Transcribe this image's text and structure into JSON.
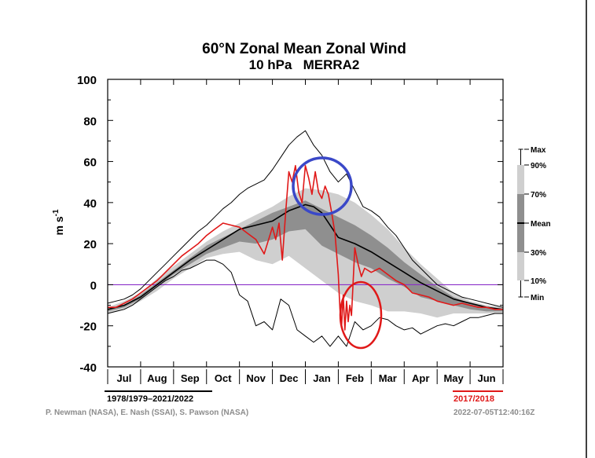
{
  "chart_data": {
    "type": "line",
    "title": "60°N Zonal Mean Zonal Wind",
    "subtitle": "10 hPa   MERRA2",
    "ylabel": "m s-1",
    "ylim": [
      -40,
      100
    ],
    "yticks": [
      -40,
      -20,
      0,
      20,
      40,
      60,
      80,
      100
    ],
    "months": [
      "Jul",
      "Aug",
      "Sep",
      "Oct",
      "Nov",
      "Dec",
      "Jan",
      "Feb",
      "Mar",
      "Apr",
      "May",
      "Jun"
    ],
    "xlim": [
      0,
      12
    ],
    "zero_line_color": "#8b2fc9",
    "climatology_label": "1978/1979–2021/2022",
    "year_label": "2017/2018",
    "credit": "P. Newman (NASA), E. Nash (SSAI), S. Pawson (NASA)",
    "timestamp": "2022-07-05T12:40:16Z",
    "legend": {
      "placement": "right",
      "entries": [
        "Max",
        "90%",
        "70%",
        "Mean",
        "30%",
        "10%",
        "Min"
      ]
    },
    "colors": {
      "band_10_90": "#cfcfcf",
      "band_30_70": "#8f8f8f",
      "mean": "#000000",
      "extremes": "#000000",
      "year": "#e01818",
      "highlight_circle_blue": "#3a48c8",
      "highlight_circle_red": "#e01818"
    },
    "series": [
      {
        "name": "Max",
        "x": [
          0,
          0.25,
          0.5,
          0.75,
          1,
          1.25,
          1.5,
          1.75,
          2,
          2.25,
          2.5,
          2.75,
          3,
          3.25,
          3.5,
          3.75,
          4,
          4.25,
          4.5,
          4.75,
          5,
          5.25,
          5.5,
          5.75,
          6,
          6.25,
          6.5,
          6.75,
          7,
          7.25,
          7.5,
          7.75,
          8,
          8.25,
          8.5,
          8.75,
          9,
          9.25,
          9.5,
          9.75,
          10,
          10.25,
          10.5,
          10.75,
          11,
          11.25,
          11.5,
          11.75,
          12
        ],
        "values": [
          -9,
          -8,
          -7,
          -5,
          -2,
          2,
          6,
          10,
          14,
          18,
          22,
          26,
          29,
          33,
          37,
          40,
          44,
          47,
          49,
          51,
          56,
          62,
          68,
          72,
          75,
          68,
          63,
          55,
          50,
          54,
          46,
          38,
          36,
          33,
          28,
          24,
          18,
          12,
          8,
          4,
          0,
          -2,
          -4,
          -6,
          -7,
          -8,
          -9,
          -10,
          -11
        ]
      },
      {
        "name": "90%",
        "x": [
          0,
          0.5,
          1,
          1.5,
          2,
          2.5,
          3,
          3.5,
          4,
          4.5,
          5,
          5.5,
          6,
          6.5,
          7,
          7.5,
          8,
          8.5,
          9,
          9.5,
          10,
          10.5,
          11,
          11.5,
          12
        ],
        "values": [
          -11,
          -8,
          -4,
          3,
          9,
          15,
          21,
          26,
          30,
          34,
          38,
          43,
          47,
          46,
          44,
          40,
          34,
          27,
          18,
          10,
          3,
          -4,
          -8,
          -10,
          -11
        ]
      },
      {
        "name": "70%",
        "x": [
          0,
          0.5,
          1,
          1.5,
          2,
          2.5,
          3,
          3.5,
          4,
          4.5,
          5,
          5.5,
          6,
          6.5,
          7,
          7.5,
          8,
          8.5,
          9,
          9.5,
          10,
          10.5,
          11,
          11.5,
          12
        ],
        "values": [
          -12,
          -10,
          -5,
          1,
          7,
          13,
          19,
          23,
          27,
          31,
          35,
          38,
          41,
          37,
          33,
          29,
          24,
          18,
          11,
          5,
          -1,
          -6,
          -9,
          -11,
          -12
        ]
      },
      {
        "name": "Mean",
        "x": [
          0,
          0.5,
          1,
          1.5,
          2,
          2.5,
          3,
          3.5,
          4,
          4.5,
          5,
          5.5,
          6,
          6.25,
          6.5,
          6.75,
          7,
          7.5,
          8,
          8.5,
          9,
          9.5,
          10,
          10.5,
          11,
          11.5,
          12
        ],
        "values": [
          -12,
          -10,
          -6,
          0,
          6,
          12,
          17,
          22,
          27,
          29,
          31,
          36,
          39,
          38,
          35,
          29,
          23,
          20,
          16,
          11,
          6,
          1,
          -3,
          -7,
          -9,
          -11,
          -12
        ]
      },
      {
        "name": "30%",
        "x": [
          0,
          0.5,
          1,
          1.5,
          2,
          2.5,
          3,
          3.5,
          4,
          4.5,
          5,
          5.5,
          6,
          6.5,
          7,
          7.5,
          8,
          8.5,
          9,
          9.5,
          10,
          10.5,
          11,
          11.5,
          12
        ],
        "values": [
          -13,
          -11,
          -7,
          -1,
          5,
          10,
          15,
          18,
          21,
          20,
          22,
          26,
          27,
          19,
          15,
          11,
          8,
          3,
          -1,
          -6,
          -8,
          -10,
          -12,
          -13,
          -13
        ]
      },
      {
        "name": "10%",
        "x": [
          0,
          0.5,
          1,
          1.5,
          2,
          2.5,
          3,
          3.5,
          4,
          4.5,
          5,
          5.5,
          6,
          6.5,
          7,
          7.5,
          8,
          8.5,
          9,
          9.5,
          10,
          10.5,
          11,
          11.5,
          12
        ],
        "values": [
          -14,
          -12,
          -8,
          -3,
          3,
          8,
          13,
          15,
          16,
          12,
          10,
          14,
          8,
          2,
          -4,
          -8,
          -10,
          -13,
          -13,
          -14,
          -16,
          -14,
          -14,
          -14,
          -14
        ]
      },
      {
        "name": "Min",
        "x": [
          0,
          0.25,
          0.5,
          0.75,
          1,
          1.25,
          1.5,
          1.75,
          2,
          2.25,
          2.5,
          2.75,
          3,
          3.25,
          3.5,
          3.75,
          4,
          4.25,
          4.5,
          4.75,
          5,
          5.25,
          5.5,
          5.75,
          6,
          6.25,
          6.5,
          6.75,
          7,
          7.25,
          7.5,
          7.75,
          8,
          8.25,
          8.5,
          8.75,
          9,
          9.25,
          9.5,
          9.75,
          10,
          10.25,
          10.5,
          10.75,
          11,
          11.25,
          11.5,
          11.75,
          12
        ],
        "values": [
          -14,
          -13,
          -12,
          -10,
          -7,
          -4,
          -1,
          2,
          4,
          7,
          8,
          10,
          12,
          12,
          10,
          6,
          -5,
          -8,
          -20,
          -18,
          -22,
          -7,
          -10,
          -22,
          -25,
          -28,
          -25,
          -30,
          -25,
          -30,
          -18,
          -22,
          -20,
          -16,
          -17,
          -20,
          -22,
          -21,
          -24,
          -22,
          -20,
          -19,
          -20,
          -18,
          -16,
          -16,
          -15,
          -14,
          -14
        ]
      },
      {
        "name": "2017/2018",
        "x": [
          0,
          0.25,
          0.5,
          0.75,
          1,
          1.25,
          1.5,
          1.75,
          2,
          2.25,
          2.5,
          2.75,
          3,
          3.25,
          3.5,
          3.75,
          4,
          4.25,
          4.5,
          4.75,
          5,
          5.1,
          5.2,
          5.3,
          5.4,
          5.5,
          5.6,
          5.7,
          5.8,
          5.9,
          6,
          6.1,
          6.2,
          6.3,
          6.4,
          6.5,
          6.6,
          6.7,
          6.8,
          6.9,
          7,
          7.05,
          7.1,
          7.15,
          7.2,
          7.25,
          7.3,
          7.35,
          7.4,
          7.5,
          7.6,
          7.7,
          7.8,
          8,
          8.25,
          8.5,
          8.75,
          9,
          9.25,
          9.5,
          9.75,
          10,
          10.25,
          10.5,
          10.75,
          11,
          11.25,
          11.5,
          11.75,
          12
        ],
        "values": [
          -11,
          -11,
          -9,
          -7,
          -4,
          -1,
          2,
          6,
          10,
          14,
          17,
          20,
          24,
          27,
          30,
          29,
          28,
          25,
          22,
          15,
          28,
          22,
          30,
          12,
          35,
          55,
          50,
          58,
          45,
          40,
          58,
          52,
          44,
          55,
          45,
          42,
          48,
          44,
          35,
          25,
          5,
          -12,
          -20,
          -5,
          -22,
          -8,
          -18,
          -10,
          -15,
          18,
          10,
          4,
          8,
          6,
          8,
          5,
          2,
          0,
          -4,
          -5,
          -6,
          -8,
          -9,
          -10,
          -9,
          -10,
          -11,
          -11,
          -12,
          -12
        ]
      }
    ]
  }
}
